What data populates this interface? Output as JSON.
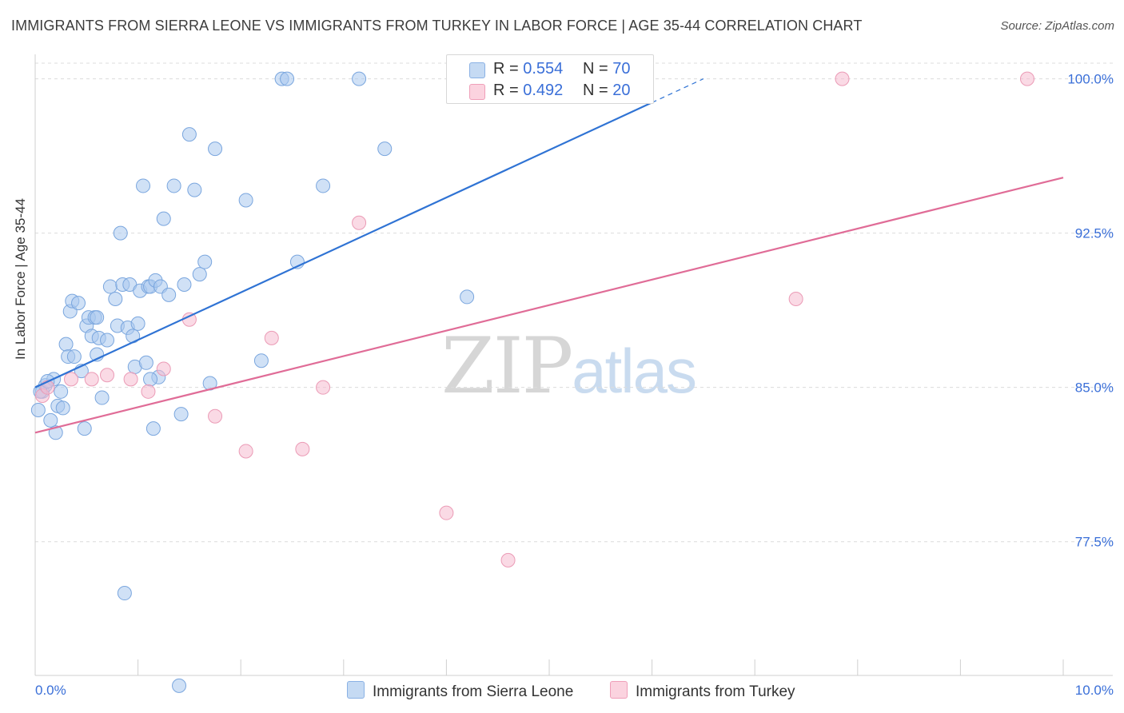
{
  "title": "IMMIGRANTS FROM SIERRA LEONE VS IMMIGRANTS FROM TURKEY IN LABOR FORCE | AGE 35-44 CORRELATION CHART",
  "source": "Source: ZipAtlas.com",
  "watermark": {
    "zip": "ZIP",
    "atlas": "atlas"
  },
  "colors": {
    "blue": "#3a7bd5",
    "blue_fill": "#a9c8ee",
    "pink": "#e06c97",
    "pink_fill": "#f6bccf",
    "accent_text": "#3a6fd8"
  },
  "legend": {
    "rows": [
      {
        "r_label": "R = ",
        "r_value": "0.554",
        "n_label": "N = ",
        "n_value": "70"
      },
      {
        "r_label": "R = ",
        "r_value": "0.492",
        "n_label": "N = ",
        "n_value": "20"
      }
    ]
  },
  "bottom_legend": {
    "series1": "Immigrants from Sierra Leone",
    "series2": "Immigrants from Turkey"
  },
  "chart_data": {
    "type": "scatter",
    "title": "IMMIGRANTS FROM SIERRA LEONE VS IMMIGRANTS FROM TURKEY IN LABOR FORCE | AGE 35-44 CORRELATION CHART",
    "xlabel": "",
    "ylabel": "In Labor Force | Age 35-44",
    "xlim": [
      0,
      10
    ],
    "ylim": [
      71.0,
      101.5
    ],
    "x_tick_labels": [
      "0.0%",
      "10.0%"
    ],
    "y_ticks": [
      77.5,
      85.0,
      92.5,
      100.0
    ],
    "y_tick_labels": [
      "77.5%",
      "85.0%",
      "92.5%",
      "100.0%"
    ],
    "grid": "horizontal dashed",
    "legend_position": "top-center",
    "series": [
      {
        "name": "Immigrants from Sierra Leone",
        "color": "#3a7bd5",
        "points": [
          [
            0.03,
            83.9
          ],
          [
            0.07,
            84.8
          ],
          [
            0.1,
            85.1
          ],
          [
            0.15,
            83.4
          ],
          [
            0.18,
            85.4
          ],
          [
            0.2,
            82.8
          ],
          [
            0.22,
            84.1
          ],
          [
            0.25,
            84.8
          ],
          [
            0.27,
            84.0
          ],
          [
            0.3,
            87.1
          ],
          [
            0.32,
            86.5
          ],
          [
            0.34,
            88.7
          ],
          [
            0.36,
            89.2
          ],
          [
            0.38,
            86.5
          ],
          [
            0.42,
            89.1
          ],
          [
            0.45,
            85.8
          ],
          [
            0.48,
            83.0
          ],
          [
            0.5,
            88.0
          ],
          [
            0.52,
            88.4
          ],
          [
            0.55,
            87.5
          ],
          [
            0.58,
            88.4
          ],
          [
            0.6,
            86.6
          ],
          [
            0.62,
            87.4
          ],
          [
            0.65,
            84.5
          ],
          [
            0.7,
            87.3
          ],
          [
            0.73,
            89.9
          ],
          [
            0.78,
            89.3
          ],
          [
            0.8,
            88.0
          ],
          [
            0.83,
            92.5
          ],
          [
            0.85,
            90.0
          ],
          [
            0.87,
            75.0
          ],
          [
            0.9,
            87.9
          ],
          [
            0.92,
            90.0
          ],
          [
            0.95,
            87.5
          ],
          [
            0.97,
            86.0
          ],
          [
            1.0,
            88.1
          ],
          [
            1.02,
            89.7
          ],
          [
            1.05,
            94.8
          ],
          [
            1.08,
            86.2
          ],
          [
            1.1,
            89.9
          ],
          [
            1.12,
            89.9
          ],
          [
            1.15,
            83.0
          ],
          [
            1.17,
            90.2
          ],
          [
            1.2,
            85.5
          ],
          [
            1.22,
            89.9
          ],
          [
            1.25,
            93.2
          ],
          [
            1.3,
            89.5
          ],
          [
            1.35,
            94.8
          ],
          [
            1.4,
            70.5
          ],
          [
            1.42,
            83.7
          ],
          [
            1.45,
            90.0
          ],
          [
            1.5,
            97.3
          ],
          [
            1.55,
            94.6
          ],
          [
            1.6,
            90.5
          ],
          [
            1.65,
            91.1
          ],
          [
            1.7,
            85.2
          ],
          [
            1.75,
            96.6
          ],
          [
            2.05,
            94.1
          ],
          [
            2.2,
            86.3
          ],
          [
            2.4,
            100.0
          ],
          [
            2.45,
            100.0
          ],
          [
            2.55,
            91.1
          ],
          [
            2.8,
            94.8
          ],
          [
            3.15,
            100.0
          ],
          [
            3.4,
            96.6
          ],
          [
            4.2,
            89.4
          ],
          [
            0.05,
            84.8
          ],
          [
            0.12,
            85.3
          ],
          [
            0.6,
            88.4
          ],
          [
            1.12,
            85.4
          ]
        ]
      },
      {
        "name": "Immigrants from Turkey",
        "color": "#e06c97",
        "points": [
          [
            0.07,
            84.6
          ],
          [
            0.12,
            85.0
          ],
          [
            0.35,
            85.4
          ],
          [
            0.55,
            85.4
          ],
          [
            0.7,
            85.6
          ],
          [
            0.93,
            85.4
          ],
          [
            1.1,
            84.8
          ],
          [
            1.25,
            85.9
          ],
          [
            1.5,
            88.3
          ],
          [
            1.75,
            83.6
          ],
          [
            2.05,
            81.9
          ],
          [
            2.3,
            87.4
          ],
          [
            2.6,
            82.0
          ],
          [
            2.8,
            85.0
          ],
          [
            3.15,
            93.0
          ],
          [
            4.0,
            78.9
          ],
          [
            4.6,
            76.6
          ],
          [
            7.85,
            100.0
          ],
          [
            7.4,
            89.3
          ],
          [
            9.65,
            100.0
          ]
        ]
      }
    ],
    "trend_lines": [
      {
        "series": "Immigrants from Sierra Leone",
        "x": [
          0.0,
          6.5
        ],
        "y": [
          85.0,
          100.0
        ]
      },
      {
        "series": "Immigrants from Turkey",
        "x": [
          0.0,
          10.0
        ],
        "y": [
          82.8,
          95.2
        ]
      }
    ]
  }
}
